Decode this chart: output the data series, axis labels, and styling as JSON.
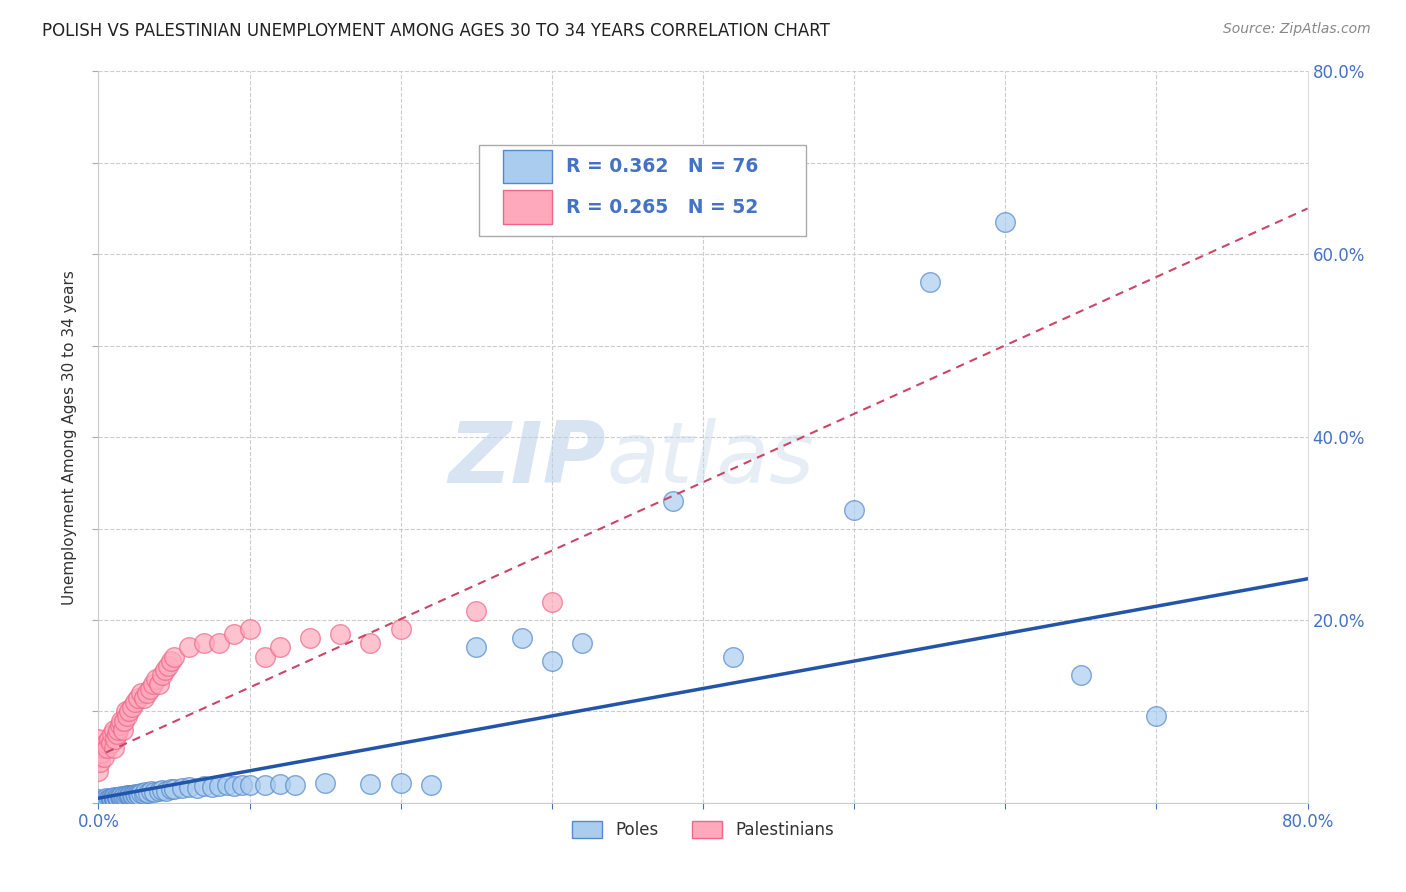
{
  "title": "POLISH VS PALESTINIAN UNEMPLOYMENT AMONG AGES 30 TO 34 YEARS CORRELATION CHART",
  "source": "Source: ZipAtlas.com",
  "ylabel": "Unemployment Among Ages 30 to 34 years",
  "xlim": [
    0.0,
    0.8
  ],
  "ylim": [
    0.0,
    0.8
  ],
  "xticks": [
    0.0,
    0.1,
    0.2,
    0.3,
    0.4,
    0.5,
    0.6,
    0.7,
    0.8
  ],
  "yticks": [
    0.0,
    0.1,
    0.2,
    0.3,
    0.4,
    0.5,
    0.6,
    0.7,
    0.8
  ],
  "poles_color": "#aaccee",
  "palestinians_color": "#ffaabc",
  "poles_edge_color": "#5588cc",
  "palestinians_edge_color": "#ee6688",
  "poles_R": 0.362,
  "poles_N": 76,
  "palestinians_R": 0.265,
  "palestinians_N": 52,
  "poles_line_color": "#2255aa",
  "palestinians_line_color": "#cc4466",
  "watermark_zip": "ZIP",
  "watermark_atlas": "atlas",
  "background_color": "#ffffff",
  "grid_color": "#cccccc",
  "legend_text_color": "#4472c4",
  "poles_legend_color": "#aaccee",
  "poles_legend_edge": "#5588cc",
  "palestinians_legend_color": "#ffaabc",
  "palestinians_legend_edge": "#ee6688",
  "poles_x": [
    0.0,
    0.0,
    0.0,
    0.0,
    0.0,
    0.003,
    0.004,
    0.005,
    0.005,
    0.006,
    0.007,
    0.008,
    0.008,
    0.009,
    0.01,
    0.01,
    0.01,
    0.011,
    0.012,
    0.012,
    0.013,
    0.014,
    0.015,
    0.015,
    0.016,
    0.017,
    0.018,
    0.019,
    0.02,
    0.02,
    0.021,
    0.022,
    0.023,
    0.024,
    0.025,
    0.026,
    0.027,
    0.028,
    0.03,
    0.031,
    0.033,
    0.035,
    0.037,
    0.04,
    0.042,
    0.045,
    0.048,
    0.05,
    0.055,
    0.06,
    0.065,
    0.07,
    0.075,
    0.08,
    0.085,
    0.09,
    0.095,
    0.1,
    0.11,
    0.12,
    0.13,
    0.15,
    0.18,
    0.2,
    0.22,
    0.25,
    0.28,
    0.3,
    0.32,
    0.38,
    0.42,
    0.5,
    0.55,
    0.6,
    0.65,
    0.7
  ],
  "poles_y": [
    0.0,
    0.001,
    0.002,
    0.003,
    0.004,
    0.003,
    0.002,
    0.004,
    0.005,
    0.003,
    0.004,
    0.003,
    0.005,
    0.004,
    0.003,
    0.005,
    0.006,
    0.004,
    0.005,
    0.006,
    0.005,
    0.006,
    0.005,
    0.007,
    0.006,
    0.007,
    0.006,
    0.008,
    0.007,
    0.009,
    0.008,
    0.009,
    0.008,
    0.01,
    0.009,
    0.01,
    0.009,
    0.011,
    0.01,
    0.012,
    0.011,
    0.013,
    0.012,
    0.013,
    0.014,
    0.013,
    0.015,
    0.015,
    0.016,
    0.017,
    0.016,
    0.018,
    0.017,
    0.018,
    0.019,
    0.018,
    0.02,
    0.019,
    0.02,
    0.021,
    0.019,
    0.022,
    0.021,
    0.022,
    0.019,
    0.17,
    0.18,
    0.155,
    0.175,
    0.33,
    0.16,
    0.32,
    0.57,
    0.635,
    0.14,
    0.095
  ],
  "palestinians_x": [
    0.0,
    0.0,
    0.0,
    0.001,
    0.002,
    0.003,
    0.004,
    0.005,
    0.006,
    0.007,
    0.008,
    0.009,
    0.01,
    0.01,
    0.011,
    0.012,
    0.013,
    0.014,
    0.015,
    0.016,
    0.017,
    0.018,
    0.019,
    0.02,
    0.022,
    0.024,
    0.026,
    0.028,
    0.03,
    0.032,
    0.034,
    0.036,
    0.038,
    0.04,
    0.042,
    0.044,
    0.046,
    0.048,
    0.05,
    0.06,
    0.07,
    0.08,
    0.09,
    0.1,
    0.11,
    0.12,
    0.14,
    0.16,
    0.18,
    0.2,
    0.25,
    0.3
  ],
  "palestinians_y": [
    0.035,
    0.05,
    0.07,
    0.045,
    0.055,
    0.06,
    0.05,
    0.065,
    0.06,
    0.07,
    0.065,
    0.075,
    0.06,
    0.08,
    0.07,
    0.075,
    0.08,
    0.085,
    0.09,
    0.08,
    0.09,
    0.1,
    0.095,
    0.1,
    0.105,
    0.11,
    0.115,
    0.12,
    0.115,
    0.12,
    0.125,
    0.13,
    0.135,
    0.13,
    0.14,
    0.145,
    0.15,
    0.155,
    0.16,
    0.17,
    0.175,
    0.175,
    0.185,
    0.19,
    0.16,
    0.17,
    0.18,
    0.185,
    0.175,
    0.19,
    0.21,
    0.22
  ],
  "poles_line_x": [
    0.0,
    0.8
  ],
  "poles_line_y": [
    0.005,
    0.245
  ],
  "pal_line_x": [
    0.005,
    0.8
  ],
  "pal_line_y": [
    0.055,
    0.65
  ]
}
